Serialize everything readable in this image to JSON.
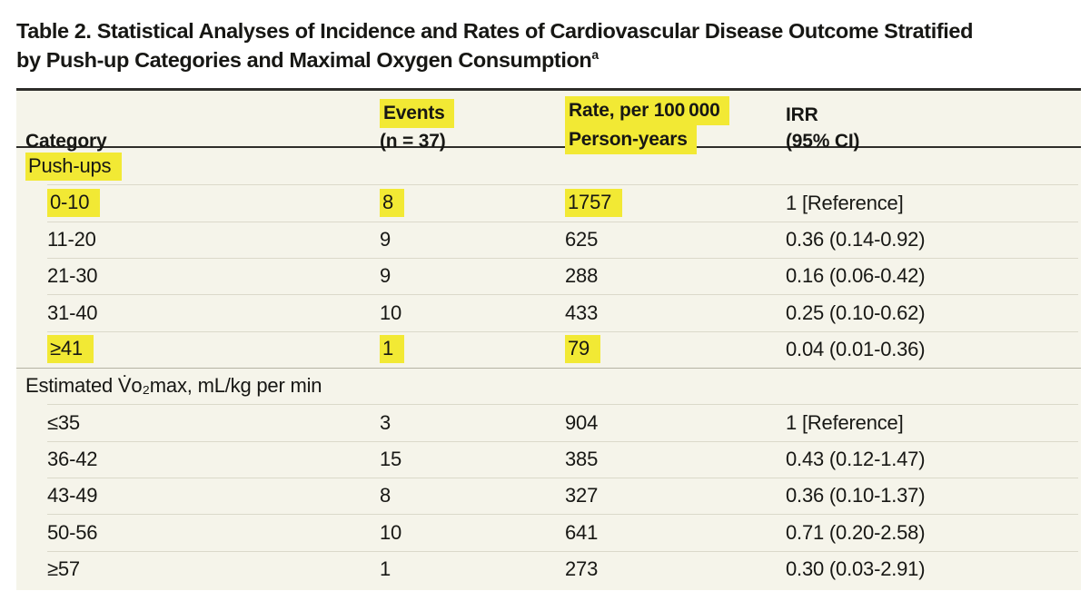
{
  "title": {
    "text": "Table 2. Statistical Analyses of Incidence and Rates of Cardiovascular Disease Outcome Stratified by Push-up Categories and Maximal Oxygen Consumption",
    "superscript": "a"
  },
  "colors": {
    "highlight": "#f2e934",
    "table_bg": "#f5f4ea",
    "rule_dark": "#2e2d29",
    "divider_light": "#dbd9ca",
    "divider_section": "#b5b3a4",
    "text": "#171714"
  },
  "table": {
    "header": [
      {
        "id": "category",
        "lines": [
          {
            "text": "Category",
            "hl": false
          }
        ]
      },
      {
        "id": "events",
        "lines": [
          {
            "text": "Events",
            "hl": true
          },
          {
            "text": "(n = 37)",
            "hl": false
          }
        ]
      },
      {
        "id": "rate",
        "lines": [
          {
            "text": "Rate, per 100 000",
            "hl": true
          },
          {
            "text": "Person-years",
            "hl": true
          }
        ]
      },
      {
        "id": "irr",
        "lines": [
          {
            "text": "IRR",
            "hl": false
          },
          {
            "text": "(95% CI)",
            "hl": false
          }
        ]
      }
    ],
    "rows": [
      {
        "type": "section",
        "divider": "none",
        "cells": [
          {
            "text": "Push-ups",
            "hl": true
          }
        ]
      },
      {
        "type": "data",
        "divider": "indent",
        "cells": [
          {
            "text": "0-10",
            "hl": true
          },
          {
            "text": "8",
            "hl": true
          },
          {
            "text": "1757",
            "hl": true
          },
          {
            "text": "1 [Reference]",
            "hl": false
          }
        ]
      },
      {
        "type": "data",
        "divider": "indent",
        "cells": [
          {
            "text": "11-20",
            "hl": false
          },
          {
            "text": "9",
            "hl": false
          },
          {
            "text": "625",
            "hl": false
          },
          {
            "text": "0.36 (0.14-0.92)",
            "hl": false
          }
        ]
      },
      {
        "type": "data",
        "divider": "indent",
        "cells": [
          {
            "text": "21-30",
            "hl": false
          },
          {
            "text": "9",
            "hl": false
          },
          {
            "text": "288",
            "hl": false
          },
          {
            "text": "0.16 (0.06-0.42)",
            "hl": false
          }
        ]
      },
      {
        "type": "data",
        "divider": "indent",
        "cells": [
          {
            "text": "31-40",
            "hl": false
          },
          {
            "text": "10",
            "hl": false
          },
          {
            "text": "433",
            "hl": false
          },
          {
            "text": "0.25 (0.10-0.62)",
            "hl": false
          }
        ]
      },
      {
        "type": "data",
        "divider": "indent",
        "cells": [
          {
            "text": "≥41",
            "hl": true
          },
          {
            "text": "1",
            "hl": true
          },
          {
            "text": "79",
            "hl": true
          },
          {
            "text": "0.04 (0.01-0.36)",
            "hl": false
          }
        ]
      },
      {
        "type": "section",
        "divider": "full",
        "cells": [
          {
            "text": "Estimated V̇o₂max, mL/kg per min",
            "hl": false
          }
        ]
      },
      {
        "type": "data",
        "divider": "indent",
        "cells": [
          {
            "text": "≤35",
            "hl": false
          },
          {
            "text": "3",
            "hl": false
          },
          {
            "text": "904",
            "hl": false
          },
          {
            "text": "1 [Reference]",
            "hl": false
          }
        ]
      },
      {
        "type": "data",
        "divider": "indent",
        "cells": [
          {
            "text": "36-42",
            "hl": false
          },
          {
            "text": "15",
            "hl": false
          },
          {
            "text": "385",
            "hl": false
          },
          {
            "text": "0.43 (0.12-1.47)",
            "hl": false
          }
        ]
      },
      {
        "type": "data",
        "divider": "indent",
        "cells": [
          {
            "text": "43-49",
            "hl": false
          },
          {
            "text": "8",
            "hl": false
          },
          {
            "text": "327",
            "hl": false
          },
          {
            "text": "0.36 (0.10-1.37)",
            "hl": false
          }
        ]
      },
      {
        "type": "data",
        "divider": "indent",
        "cells": [
          {
            "text": "50-56",
            "hl": false
          },
          {
            "text": "10",
            "hl": false
          },
          {
            "text": "641",
            "hl": false
          },
          {
            "text": "0.71 (0.20-2.58)",
            "hl": false
          }
        ]
      },
      {
        "type": "data",
        "divider": "indent",
        "cells": [
          {
            "text": "≥57",
            "hl": false
          },
          {
            "text": "1",
            "hl": false
          },
          {
            "text": "273",
            "hl": false
          },
          {
            "text": "0.30 (0.03-2.91)",
            "hl": false
          }
        ]
      }
    ]
  }
}
